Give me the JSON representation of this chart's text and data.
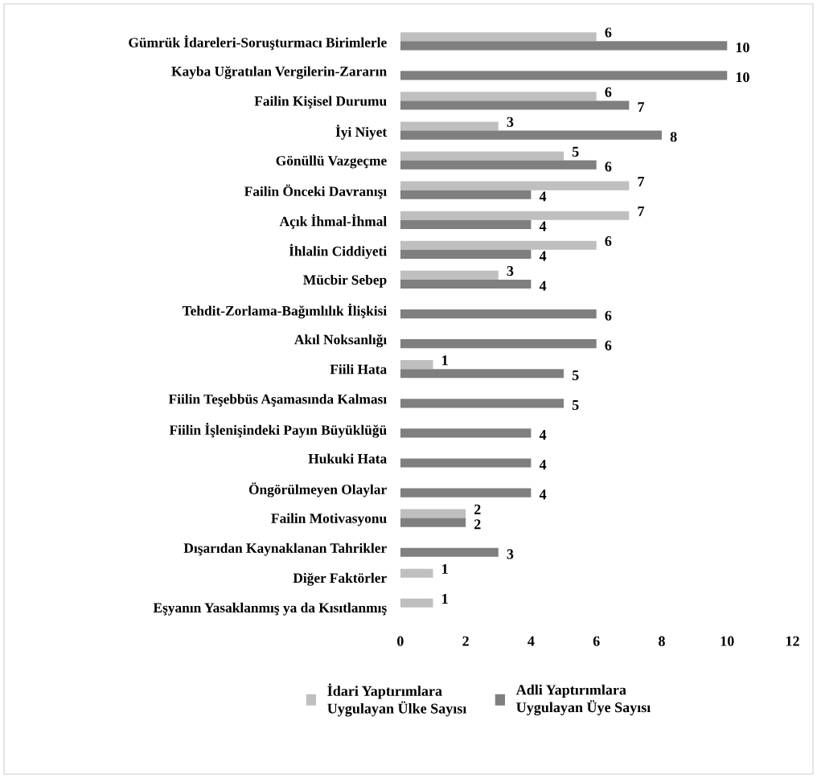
{
  "chart_data": {
    "type": "bar",
    "orientation": "horizontal",
    "categories": [
      "Gümrük İdareleri-Soruşturmacı Birimlerle",
      "Kayba Uğratılan Vergilerin-Zararın",
      "Failin Kişisel Durumu",
      "İyi Niyet",
      "Gönüllü Vazgeçme",
      "Failin Önceki Davranışı",
      "Açık İhmal-İhmal",
      "İhlalin Ciddiyeti",
      "Mücbir Sebep",
      "Tehdit-Zorlama-Bağımlılık İlişkisi",
      "Akıl Noksanlığı",
      "Fiili Hata",
      "Fiilin Teşebbüs Aşamasında Kalması",
      "Fiilin İşlenişindeki Payın Büyüklüğü",
      "Hukuki Hata",
      "Öngörülmeyen Olaylar",
      "Failin Motivasyonu",
      "Dışarıdan Kaynaklanan Tahrikler",
      "Diğer Faktörler",
      "Eşyanın Yasaklanmış ya da Kısıtlanmış"
    ],
    "series": [
      {
        "name": "İdari Yaptırımlara Uygulayan Ülke Sayısı",
        "color": "#bfbfbf",
        "values": [
          6,
          null,
          6,
          3,
          5,
          7,
          7,
          6,
          3,
          null,
          null,
          1,
          null,
          null,
          null,
          null,
          2,
          null,
          1,
          1
        ]
      },
      {
        "name": "Adli Yaptırımlara Uygulayan Üye Sayısı",
        "color": "#7f7f7f",
        "values": [
          10,
          10,
          7,
          8,
          6,
          4,
          4,
          4,
          4,
          6,
          6,
          5,
          5,
          4,
          4,
          4,
          2,
          3,
          null,
          null
        ]
      }
    ],
    "xlim": [
      0,
      12
    ],
    "xticks": [
      0,
      2,
      4,
      6,
      8,
      10,
      12
    ],
    "grid": false,
    "legend": "bottom",
    "data_labels": true
  }
}
